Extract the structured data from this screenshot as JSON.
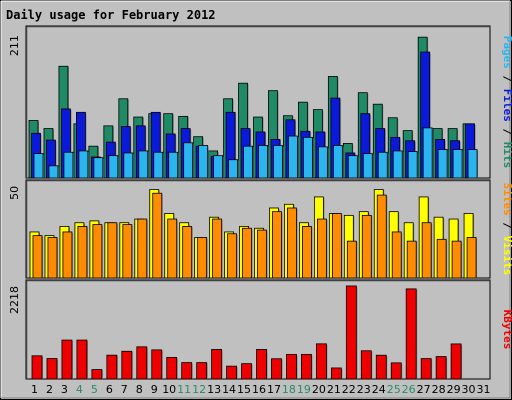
{
  "chart_data": {
    "title": "Daily usage for February 2012",
    "days": [
      "1",
      "2",
      "3",
      "4",
      "5",
      "6",
      "7",
      "8",
      "9",
      "10",
      "11",
      "12",
      "13",
      "14",
      "15",
      "16",
      "17",
      "18",
      "19",
      "20",
      "21",
      "22",
      "23",
      "24",
      "25",
      "26",
      "27",
      "28",
      "29",
      "30",
      "31"
    ],
    "weekend_days": [
      "4",
      "5",
      "11",
      "12",
      "18",
      "19",
      "25",
      "26"
    ],
    "colors": {
      "background": "#c0c0c0",
      "title": "#0000cc",
      "weekday": "#000000",
      "weekend": "#2a8a6a",
      "hits": "#1e8a66",
      "files": "#0a1ad8",
      "pages": "#2ab4f0",
      "visits": "#ffff00",
      "sites": "#ff8c00",
      "kbytes": "#ee0000"
    },
    "panels": [
      {
        "type": "bar",
        "ymax_label": "211",
        "ylim": [
          0,
          211
        ],
        "series": [
          {
            "name": "Hits",
            "values": [
              85,
              73,
              165,
              80,
              47,
              77,
              117,
              90,
              95,
              95,
              91,
              61,
              40,
              117,
              140,
              90,
              129,
              92,
              112,
              101,
              150,
              51,
              126,
              109,
              89,
              70,
              208,
              73,
              73,
              80
            ]
          },
          {
            "name": "Files",
            "values": [
              66,
              56,
              102,
              97,
              31,
              53,
              76,
              77,
              97,
              65,
              73,
              47,
              32,
              97,
              73,
              68,
              57,
              86,
              69,
              68,
              118,
              37,
              95,
              73,
              60,
              55,
              186,
              57,
              55,
              80
            ]
          },
          {
            "name": "Pages",
            "values": [
              36,
              18,
              38,
              40,
              30,
              33,
              37,
              40,
              38,
              38,
              52,
              48,
              33,
              27,
              47,
              48,
              48,
              62,
              60,
              46,
              48,
              33,
              36,
              38,
              40,
              39,
              74,
              42,
              42,
              42
            ]
          }
        ]
      },
      {
        "type": "bar",
        "ymax_label": "50",
        "ylim": [
          0,
          50
        ],
        "series": [
          {
            "name": "Visits",
            "values": [
              25,
              23,
              28,
              30,
              31,
              30,
              30,
              32,
              48,
              35,
              30,
              22,
              33,
              25,
              28,
              27,
              38,
              40,
              30,
              44,
              35,
              34,
              36,
              48,
              36,
              30,
              44,
              33,
              32,
              35
            ]
          },
          {
            "name": "Sites",
            "values": [
              23,
              22,
              25,
              28,
              29,
              30,
              29,
              32,
              46,
              32,
              28,
              22,
              32,
              24,
              27,
              26,
              36,
              38,
              28,
              32,
              35,
              20,
              34,
              45,
              25,
              20,
              30,
              21,
              20,
              22
            ]
          }
        ]
      },
      {
        "type": "bar",
        "ymax_label": "2218",
        "ylim": [
          0,
          2218
        ],
        "series": [
          {
            "name": "KBytes",
            "values": [
              553,
              488,
              928,
              928,
              225,
              568,
              661,
              767,
              694,
              515,
              391,
              391,
              705,
              306,
              366,
              705,
              483,
              587,
              587,
              838,
              263,
              2218,
              673,
              567,
              385,
              2148,
              487,
              535,
              836,
              0
            ]
          }
        ]
      }
    ],
    "right_labels": {
      "panel1": [
        {
          "text": "Pages",
          "color": "#2ab4f0"
        },
        {
          "text": " / ",
          "color": "#000000"
        },
        {
          "text": "Files",
          "color": "#0a1ad8"
        },
        {
          "text": " / ",
          "color": "#000000"
        },
        {
          "text": "Hits",
          "color": "#1e8a66"
        }
      ],
      "panel2": [
        {
          "text": "Sites",
          "color": "#ff8c00"
        },
        {
          "text": " / ",
          "color": "#000000"
        },
        {
          "text": "Visits",
          "color": "#ffff00"
        }
      ],
      "panel3": [
        {
          "text": "KBytes",
          "color": "#ee0000"
        }
      ]
    }
  }
}
